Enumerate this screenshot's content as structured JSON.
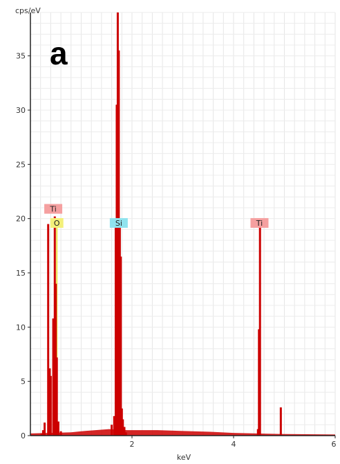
{
  "chart_data": {
    "type": "bar",
    "panel_label": "a",
    "ylabel": "cps/eV",
    "xlabel": "keV",
    "xlim": [
      0,
      6
    ],
    "ylim": [
      0,
      39
    ],
    "x_ticks": [
      2,
      4,
      6
    ],
    "y_ticks": [
      0,
      5,
      10,
      15,
      20,
      25,
      30,
      35
    ],
    "grid": true,
    "spectrum_color": "#cc0000",
    "x": [
      0.22,
      0.25,
      0.28,
      0.35,
      0.38,
      0.4,
      0.45,
      0.48,
      0.5,
      0.52,
      0.55,
      0.6,
      1.6,
      1.65,
      1.68,
      1.7,
      1.72,
      1.74,
      1.76,
      1.78,
      1.8,
      1.82,
      1.85,
      1.88,
      4.48,
      4.5,
      4.52,
      4.93
    ],
    "values": [
      0.2,
      0.5,
      1.2,
      19.5,
      6.2,
      5.5,
      10.8,
      20.2,
      14.0,
      7.2,
      1.3,
      0.4,
      1.0,
      1.8,
      19.8,
      30.5,
      39.0,
      35.5,
      19.8,
      16.5,
      2.5,
      1.5,
      0.8,
      0.3,
      0.6,
      9.8,
      19.5,
      2.6
    ],
    "background": [
      [
        0.0,
        0.2
      ],
      [
        0.8,
        0.3
      ],
      [
        1.0,
        0.4
      ],
      [
        1.55,
        0.6
      ],
      [
        1.9,
        0.5
      ],
      [
        2.5,
        0.5
      ],
      [
        3.55,
        0.35
      ],
      [
        4.0,
        0.25
      ],
      [
        4.9,
        0.15
      ],
      [
        6.0,
        0.1
      ]
    ],
    "element_markers": [
      {
        "label": "Ti",
        "x": 0.45,
        "y": 20.9,
        "color": "#f5a0a0"
      },
      {
        "label": "O",
        "x": 0.52,
        "y": 19.6,
        "color": "#f3f07a"
      },
      {
        "label": "Si",
        "x": 1.74,
        "y": 19.6,
        "color": "#8fe3ee"
      },
      {
        "label": "Ti",
        "x": 4.51,
        "y": 19.6,
        "color": "#f5a0a0"
      }
    ],
    "marker_lines": [
      {
        "x": 0.52,
        "y": 19.6,
        "color": "#e8e84a"
      },
      {
        "x": 1.74,
        "y": 19.6,
        "color": "#9a9a9a"
      }
    ]
  }
}
